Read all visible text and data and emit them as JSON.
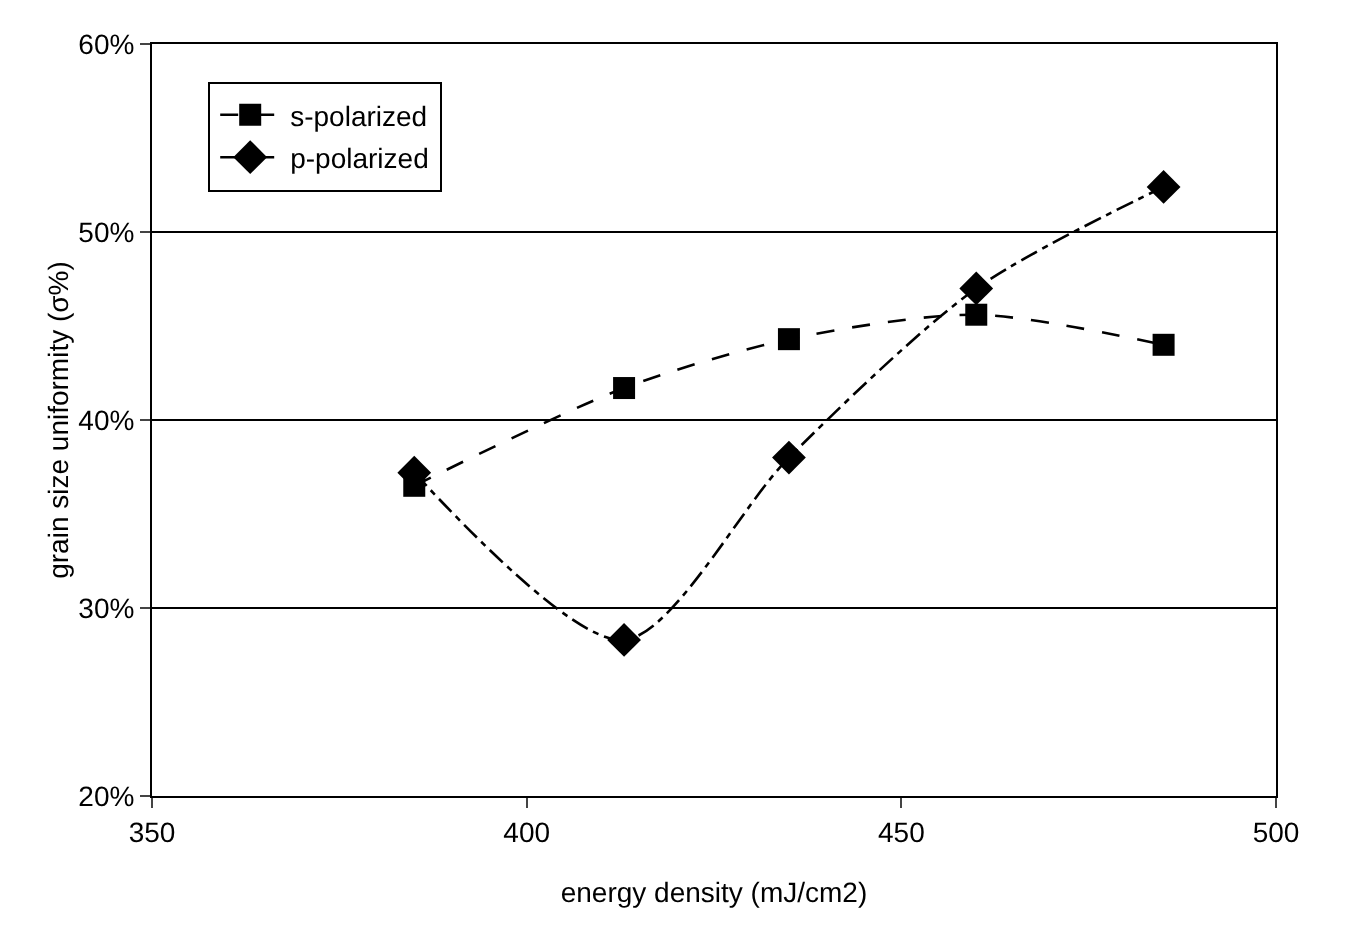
{
  "chart_data": {
    "type": "line",
    "xlabel": "energy density (mJ/cm2)",
    "ylabel": "grain size uniformity (σ%)",
    "x": [
      385,
      413,
      435,
      460,
      485
    ],
    "series": [
      {
        "name": "s-polarized",
        "color": "#000000",
        "values": [
          36.5,
          41.7,
          44.3,
          45.6,
          44.0
        ],
        "marker": "square",
        "line_style": "dashed"
      },
      {
        "name": "p-polarized",
        "color": "#000000",
        "values": [
          37.2,
          28.3,
          38.0,
          47.0,
          52.4
        ],
        "marker": "diamond",
        "line_style": "dashdot"
      }
    ],
    "xlim": [
      350,
      500
    ],
    "xticks": [
      350,
      400,
      450,
      500
    ],
    "ylim": [
      20,
      60
    ],
    "yticks": [
      {
        "value": 20,
        "label": "20%"
      },
      {
        "value": 30,
        "label": "30%"
      },
      {
        "value": 40,
        "label": "40%"
      },
      {
        "value": 50,
        "label": "50%"
      },
      {
        "value": 60,
        "label": "60%"
      }
    ],
    "grid": "y",
    "legend": "top left"
  }
}
